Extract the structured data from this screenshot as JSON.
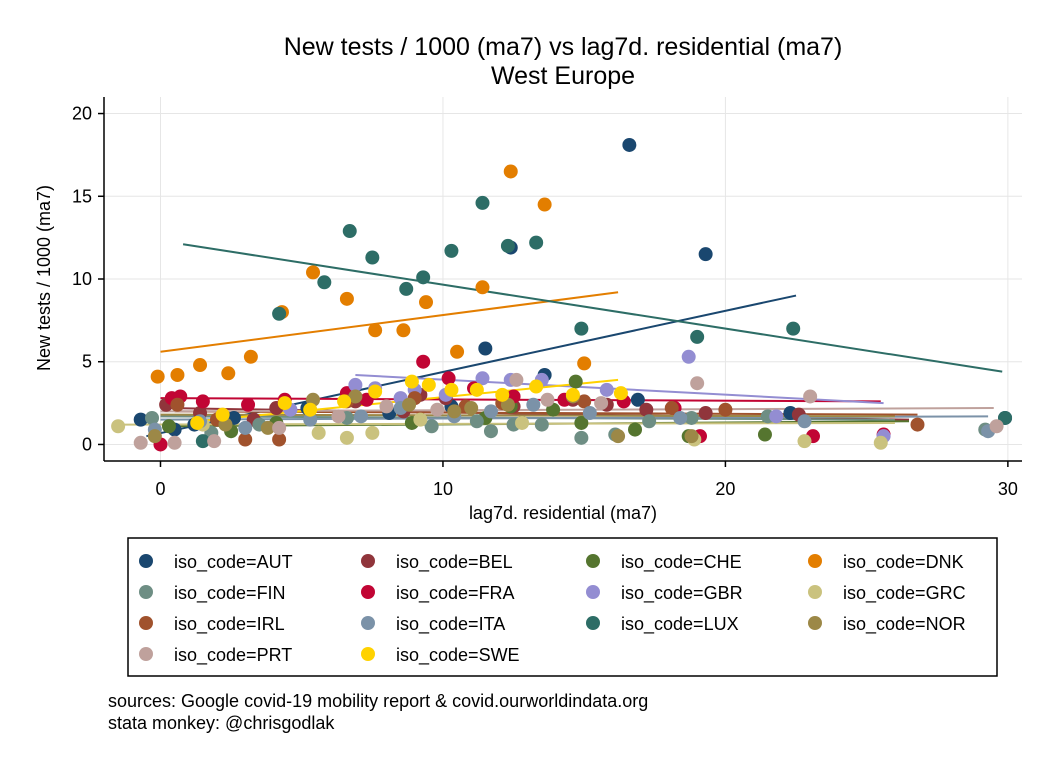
{
  "chart_data": {
    "type": "scatter",
    "title": "New tests / 1000 (ma7) vs lag7d. residential (ma7)",
    "subtitle": "West Europe",
    "xlabel": "lag7d. residential (ma7)",
    "ylabel": "New tests / 1000 (ma7)",
    "xlim": [
      -2,
      30.5
    ],
    "ylim": [
      -1,
      21
    ],
    "xticks": [
      0,
      10,
      20,
      30
    ],
    "yticks": [
      0,
      5,
      10,
      15,
      20
    ],
    "grid": true,
    "legend_position": "bottom",
    "notes": [
      "sources: Google covid-19 mobility report & covid.ourworldindata.org",
      "stata monkey: @chrisgodlak"
    ],
    "series": [
      {
        "name": "iso_code=AUT",
        "color": "#1a476f",
        "points": [
          [
            16.6,
            18.1
          ],
          [
            19.3,
            11.5
          ],
          [
            12.4,
            11.9
          ],
          [
            11.5,
            5.8
          ],
          [
            13.6,
            4.2
          ],
          [
            -0.7,
            1.5
          ],
          [
            1.2,
            1.2
          ],
          [
            5.2,
            2.2
          ],
          [
            8.1,
            1.9
          ],
          [
            22.3,
            1.9
          ],
          [
            29.9,
            1.6
          ],
          [
            16.9,
            2.7
          ],
          [
            0.5,
            0.9
          ],
          [
            2.6,
            1.6
          ],
          [
            10.3,
            2.3
          ]
        ],
        "fit": [
          [
            -0.5,
            0.5
          ],
          [
            22.5,
            9.0
          ]
        ]
      },
      {
        "name": "iso_code=BEL",
        "color": "#90353b",
        "points": [
          [
            0.2,
            2.4
          ],
          [
            1.4,
            1.9
          ],
          [
            4.1,
            2.2
          ],
          [
            6.9,
            2.6
          ],
          [
            9.2,
            3.0
          ],
          [
            10.1,
            2.8
          ],
          [
            12.5,
            2.3
          ],
          [
            14.6,
            2.7
          ],
          [
            17.2,
            2.1
          ],
          [
            19.3,
            1.9
          ],
          [
            22.6,
            1.8
          ],
          [
            3.3,
            1.5
          ],
          [
            8.6,
            2.0
          ],
          [
            15.8,
            2.4
          ]
        ],
        "fit": [
          [
            0.2,
            2.2
          ],
          [
            26.5,
            1.5
          ]
        ]
      },
      {
        "name": "iso_code=CHE",
        "color": "#55752f",
        "points": [
          [
            6.8,
            2.9
          ],
          [
            8.9,
            1.3
          ],
          [
            13.9,
            2.1
          ],
          [
            14.7,
            3.8
          ],
          [
            14.9,
            1.3
          ],
          [
            16.8,
            0.9
          ],
          [
            18.7,
            0.5
          ],
          [
            21.4,
            0.6
          ],
          [
            2.5,
            0.8
          ],
          [
            0.3,
            1.1
          ],
          [
            4.1,
            1.3
          ],
          [
            11.5,
            1.6
          ],
          [
            12.4,
            2.3
          ]
        ],
        "fit": [
          [
            0.2,
            1.1
          ],
          [
            26.5,
            1.4
          ]
        ]
      },
      {
        "name": "iso_code=DNK",
        "color": "#e37e00",
        "points": [
          [
            12.4,
            16.5
          ],
          [
            13.6,
            14.5
          ],
          [
            11.4,
            9.5
          ],
          [
            5.4,
            10.4
          ],
          [
            6.6,
            8.8
          ],
          [
            4.3,
            8.0
          ],
          [
            9.4,
            8.6
          ],
          [
            7.6,
            6.9
          ],
          [
            8.6,
            6.9
          ],
          [
            10.5,
            5.6
          ],
          [
            15.0,
            4.9
          ],
          [
            3.2,
            5.3
          ],
          [
            1.4,
            4.8
          ],
          [
            2.4,
            4.3
          ],
          [
            0.6,
            4.2
          ],
          [
            -0.1,
            4.1
          ]
        ],
        "fit": [
          [
            0.0,
            5.6
          ],
          [
            16.2,
            9.2
          ]
        ]
      },
      {
        "name": "iso_code=FIN",
        "color": "#6e8e84",
        "points": [
          [
            -0.3,
            1.6
          ],
          [
            1.8,
            0.7
          ],
          [
            3.5,
            1.2
          ],
          [
            6.6,
            1.6
          ],
          [
            9.6,
            1.1
          ],
          [
            11.2,
            1.4
          ],
          [
            11.7,
            0.8
          ],
          [
            12.5,
            1.2
          ],
          [
            13.5,
            1.2
          ],
          [
            14.9,
            0.4
          ],
          [
            16.1,
            0.6
          ],
          [
            17.3,
            1.4
          ],
          [
            18.8,
            1.6
          ],
          [
            21.5,
            1.7
          ],
          [
            29.2,
            0.9
          ]
        ],
        "fit": [
          [
            0.0,
            1.7
          ],
          [
            26.0,
            1.5
          ]
        ]
      },
      {
        "name": "iso_code=FRA",
        "color": "#c10534",
        "points": [
          [
            0.4,
            2.8
          ],
          [
            0.7,
            2.9
          ],
          [
            1.5,
            2.6
          ],
          [
            3.1,
            2.4
          ],
          [
            4.4,
            2.7
          ],
          [
            6.6,
            3.1
          ],
          [
            7.3,
            2.7
          ],
          [
            9.3,
            5.0
          ],
          [
            10.2,
            4.0
          ],
          [
            11.1,
            3.4
          ],
          [
            12.5,
            2.9
          ],
          [
            14.3,
            2.7
          ],
          [
            16.4,
            2.6
          ],
          [
            18.2,
            2.2
          ],
          [
            19.1,
            0.5
          ],
          [
            23.1,
            0.5
          ],
          [
            25.6,
            0.6
          ],
          [
            0.0,
            0.0
          ]
        ],
        "fit": [
          [
            0.0,
            2.8
          ],
          [
            25.5,
            2.6
          ]
        ]
      },
      {
        "name": "iso_code=GBR",
        "color": "#938dd2",
        "points": [
          [
            6.9,
            3.6
          ],
          [
            7.6,
            3.4
          ],
          [
            9.0,
            3.3
          ],
          [
            10.1,
            3.0
          ],
          [
            11.4,
            4.0
          ],
          [
            12.4,
            3.9
          ],
          [
            13.5,
            3.9
          ],
          [
            15.8,
            3.3
          ],
          [
            18.7,
            5.3
          ],
          [
            21.8,
            1.7
          ],
          [
            25.6,
            0.5
          ],
          [
            4.6,
            2.1
          ],
          [
            8.5,
            2.8
          ]
        ],
        "fit": [
          [
            6.9,
            4.2
          ],
          [
            25.6,
            2.5
          ]
        ]
      },
      {
        "name": "iso_code=GRC",
        "color": "#cac27e",
        "points": [
          [
            -1.5,
            1.1
          ],
          [
            1.5,
            1.2
          ],
          [
            5.6,
            0.7
          ],
          [
            6.6,
            0.4
          ],
          [
            7.5,
            0.7
          ],
          [
            18.9,
            0.3
          ],
          [
            22.8,
            0.2
          ],
          [
            25.5,
            0.1
          ],
          [
            9.2,
            1.5
          ],
          [
            12.8,
            1.3
          ]
        ],
        "fit": [
          [
            -1.5,
            1.2
          ],
          [
            26.0,
            1.3
          ]
        ]
      },
      {
        "name": "iso_code=IRL",
        "color": "#a0522d",
        "points": [
          [
            0.6,
            2.4
          ],
          [
            3.0,
            0.3
          ],
          [
            4.2,
            0.3
          ],
          [
            6.6,
            2.6
          ],
          [
            9.0,
            2.8
          ],
          [
            10.8,
            2.3
          ],
          [
            12.1,
            2.5
          ],
          [
            15.0,
            2.6
          ],
          [
            18.1,
            2.2
          ],
          [
            20.0,
            2.1
          ],
          [
            26.8,
            1.2
          ],
          [
            2.0,
            1.5
          ]
        ],
        "fit": [
          [
            0.5,
            2.0
          ],
          [
            26.8,
            1.8
          ]
        ]
      },
      {
        "name": "iso_code=ITA",
        "color": "#7b92a8",
        "points": [
          [
            -0.2,
            0.9
          ],
          [
            1.4,
            1.4
          ],
          [
            3.0,
            1.0
          ],
          [
            5.3,
            1.5
          ],
          [
            7.1,
            1.7
          ],
          [
            8.5,
            2.2
          ],
          [
            10.4,
            1.7
          ],
          [
            11.7,
            2.0
          ],
          [
            13.2,
            2.4
          ],
          [
            15.2,
            1.9
          ],
          [
            18.4,
            1.6
          ],
          [
            22.8,
            1.4
          ],
          [
            29.3,
            0.8
          ]
        ],
        "fit": [
          [
            0.0,
            1.5
          ],
          [
            29.3,
            1.7
          ]
        ]
      },
      {
        "name": "iso_code=LUX",
        "color": "#2d6d66",
        "points": [
          [
            6.7,
            12.9
          ],
          [
            11.4,
            14.6
          ],
          [
            13.3,
            12.2
          ],
          [
            12.3,
            12.0
          ],
          [
            10.3,
            11.7
          ],
          [
            7.5,
            11.3
          ],
          [
            9.3,
            10.1
          ],
          [
            5.8,
            9.8
          ],
          [
            8.7,
            9.4
          ],
          [
            4.2,
            7.9
          ],
          [
            14.9,
            7.0
          ],
          [
            19.0,
            6.5
          ],
          [
            22.4,
            7.0
          ],
          [
            29.9,
            1.6
          ],
          [
            1.5,
            0.2
          ]
        ],
        "fit": [
          [
            0.8,
            12.1
          ],
          [
            29.8,
            4.4
          ]
        ]
      },
      {
        "name": "iso_code=NOR",
        "color": "#9c8847",
        "points": [
          [
            -0.2,
            0.5
          ],
          [
            2.3,
            1.2
          ],
          [
            5.4,
            2.7
          ],
          [
            6.9,
            2.9
          ],
          [
            8.8,
            2.4
          ],
          [
            10.4,
            2.0
          ],
          [
            12.3,
            2.4
          ],
          [
            14.6,
            2.9
          ],
          [
            16.2,
            0.5
          ],
          [
            18.8,
            0.5
          ],
          [
            3.8,
            1.0
          ],
          [
            11.0,
            2.2
          ]
        ],
        "fit": [
          [
            0.0,
            1.8
          ],
          [
            26.0,
            1.7
          ]
        ]
      },
      {
        "name": "iso_code=PRT",
        "color": "#bfa19c",
        "points": [
          [
            -0.7,
            0.1
          ],
          [
            0.5,
            0.1
          ],
          [
            1.9,
            0.2
          ],
          [
            4.2,
            1.0
          ],
          [
            6.3,
            1.7
          ],
          [
            9.8,
            2.1
          ],
          [
            12.6,
            3.9
          ],
          [
            13.7,
            2.7
          ],
          [
            19.0,
            3.7
          ],
          [
            23.0,
            2.9
          ],
          [
            29.6,
            1.1
          ],
          [
            8.0,
            2.3
          ],
          [
            15.6,
            2.5
          ]
        ],
        "fit": [
          [
            0.0,
            2.0
          ],
          [
            29.5,
            2.2
          ]
        ]
      },
      {
        "name": "iso_code=SWE",
        "color": "#ffd200",
        "points": [
          [
            1.3,
            1.3
          ],
          [
            2.2,
            1.8
          ],
          [
            5.3,
            2.1
          ],
          [
            7.6,
            3.2
          ],
          [
            8.9,
            3.8
          ],
          [
            9.5,
            3.6
          ],
          [
            10.3,
            3.3
          ],
          [
            11.2,
            3.3
          ],
          [
            12.1,
            3.0
          ],
          [
            13.3,
            3.5
          ],
          [
            14.6,
            3.0
          ],
          [
            16.3,
            3.1
          ],
          [
            4.4,
            2.5
          ],
          [
            6.5,
            2.6
          ]
        ],
        "fit": [
          [
            1.3,
            1.4
          ],
          [
            16.2,
            3.9
          ]
        ]
      }
    ]
  }
}
